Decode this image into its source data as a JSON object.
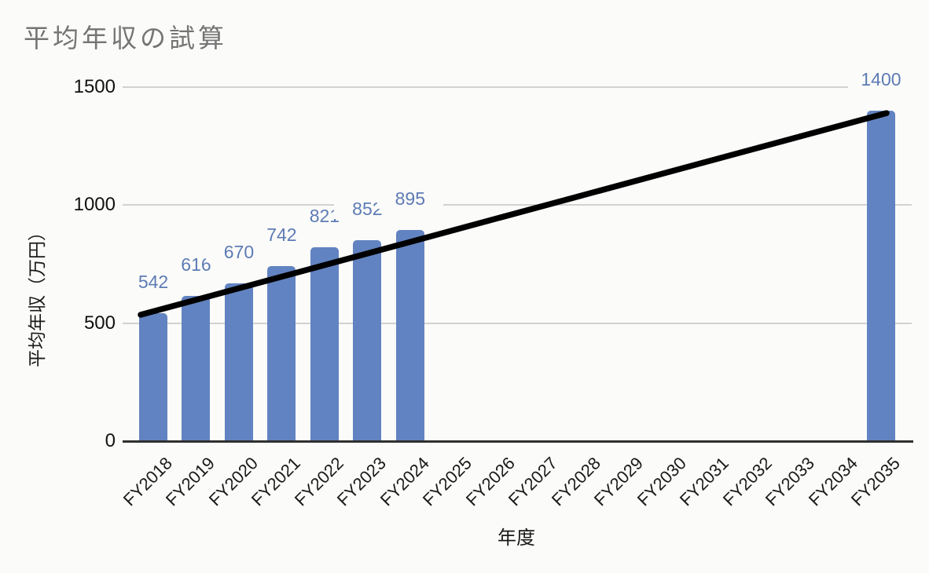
{
  "chart_data": {
    "type": "bar",
    "title": "平均年収の試算",
    "xlabel": "年度",
    "ylabel": "平均年収（万円）",
    "categories": [
      "FY2018",
      "FY2019",
      "FY2020",
      "FY2021",
      "FY2022",
      "FY2023",
      "FY2024",
      "FY2025",
      "FY2026",
      "FY2027",
      "FY2028",
      "FY2029",
      "FY2030",
      "FY2031",
      "FY2032",
      "FY2033",
      "FY2034",
      "FY2035"
    ],
    "series": [
      {
        "name": "平均年収",
        "values": [
          542,
          616,
          670,
          742,
          821,
          852,
          895,
          null,
          null,
          null,
          null,
          null,
          null,
          null,
          null,
          null,
          null,
          1400
        ]
      }
    ],
    "data_labels": [
      "542",
      "616",
      "670",
      "742",
      "821",
      "852",
      "895",
      "1400"
    ],
    "trendline": {
      "type": "linear",
      "from_category": "FY2018",
      "from_value": 542,
      "to_category": "FY2035",
      "to_value": 1400
    },
    "yticks": [
      0,
      500,
      1000,
      1500
    ],
    "ylim": [
      0,
      1500
    ],
    "grid": true,
    "legend": "none",
    "colors": {
      "background": "#FBFBF9",
      "bar": "#6283C1",
      "value_label": "#5D7BB5",
      "title": "#757575",
      "gridline": "#D2D2D2",
      "axis_line": "#303030",
      "tick_label": "#111111",
      "trendline": "#000000"
    }
  }
}
